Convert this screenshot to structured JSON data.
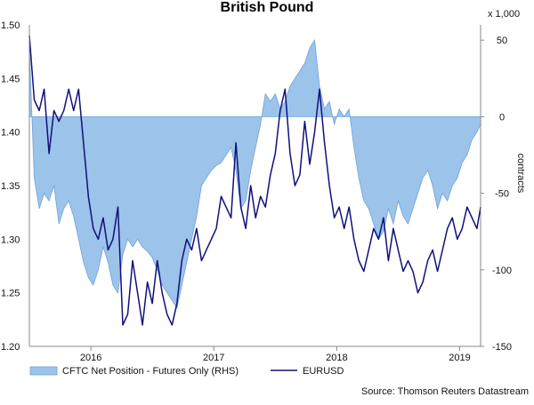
{
  "chart_data": {
    "type": "area",
    "title": "British Pound",
    "right_axis_unit": "x 1,000",
    "right_axis_label": "contracts",
    "source": "Source: Thomson Reuters Datastream",
    "left_ylim": [
      1.2,
      1.5
    ],
    "left_ticks": [
      "1.20",
      "1.25",
      "1.30",
      "1.35",
      "1.40",
      "1.45",
      "1.50"
    ],
    "right_ylim": [
      -150,
      60
    ],
    "right_ticks": [
      "-150",
      "-100",
      "-50",
      "0",
      "50"
    ],
    "xlim": [
      2015.5,
      2019.17
    ],
    "x_ticks": [
      {
        "label": "2016",
        "x": 2016.0
      },
      {
        "label": "2017",
        "x": 2017.0
      },
      {
        "label": "2018",
        "x": 2018.0
      },
      {
        "label": "2019",
        "x": 2019.0
      }
    ],
    "legend_position": "bottom-left",
    "colors": {
      "area_fill": "#9cc3ea",
      "area_stroke": "#6fa3d8",
      "line": "#10107a"
    },
    "series": [
      {
        "name": "CFTC Net Position - Futures Only (RHS)",
        "axis": "right",
        "x": [
          2015.5,
          2015.54,
          2015.58,
          2015.62,
          2015.66,
          2015.7,
          2015.74,
          2015.78,
          2015.82,
          2015.86,
          2015.9,
          2015.94,
          2015.98,
          2016.02,
          2016.06,
          2016.1,
          2016.14,
          2016.18,
          2016.22,
          2016.26,
          2016.3,
          2016.34,
          2016.38,
          2016.42,
          2016.46,
          2016.5,
          2016.54,
          2016.58,
          2016.62,
          2016.66,
          2016.7,
          2016.74,
          2016.78,
          2016.82,
          2016.86,
          2016.9,
          2016.94,
          2016.98,
          2017.02,
          2017.06,
          2017.1,
          2017.14,
          2017.18,
          2017.22,
          2017.26,
          2017.3,
          2017.34,
          2017.38,
          2017.42,
          2017.46,
          2017.5,
          2017.54,
          2017.58,
          2017.62,
          2017.66,
          2017.7,
          2017.74,
          2017.78,
          2017.82,
          2017.86,
          2017.9,
          2017.94,
          2017.98,
          2018.02,
          2018.06,
          2018.1,
          2018.14,
          2018.18,
          2018.22,
          2018.26,
          2018.3,
          2018.34,
          2018.38,
          2018.42,
          2018.46,
          2018.5,
          2018.54,
          2018.58,
          2018.62,
          2018.66,
          2018.7,
          2018.74,
          2018.78,
          2018.82,
          2018.86,
          2018.9,
          2018.94,
          2018.98,
          2019.02,
          2019.06,
          2019.1,
          2019.14,
          2019.17
        ],
        "values": [
          45,
          -40,
          -60,
          -50,
          -55,
          -45,
          -70,
          -60,
          -55,
          -65,
          -80,
          -95,
          -105,
          -110,
          -100,
          -85,
          -95,
          -110,
          -115,
          -90,
          -80,
          -85,
          -80,
          -85,
          -88,
          -92,
          -100,
          -110,
          -115,
          -120,
          -125,
          -110,
          -95,
          -80,
          -65,
          -45,
          -40,
          -35,
          -32,
          -30,
          -25,
          -20,
          -35,
          -60,
          -55,
          -35,
          -20,
          -5,
          15,
          10,
          15,
          5,
          10,
          20,
          25,
          30,
          35,
          45,
          50,
          20,
          5,
          10,
          -5,
          5,
          0,
          5,
          -20,
          -40,
          -55,
          -60,
          -70,
          -80,
          -75,
          -60,
          -70,
          -55,
          -65,
          -70,
          -60,
          -50,
          -40,
          -35,
          -45,
          -60,
          -50,
          -55,
          -45,
          -40,
          -30,
          -25,
          -15,
          -10,
          -5
        ]
      },
      {
        "name": "EURUSD",
        "axis": "left",
        "x": [
          2015.5,
          2015.54,
          2015.58,
          2015.62,
          2015.66,
          2015.7,
          2015.74,
          2015.78,
          2015.82,
          2015.86,
          2015.9,
          2015.94,
          2015.98,
          2016.02,
          2016.06,
          2016.1,
          2016.14,
          2016.18,
          2016.22,
          2016.26,
          2016.3,
          2016.34,
          2016.38,
          2016.42,
          2016.46,
          2016.5,
          2016.54,
          2016.58,
          2016.62,
          2016.66,
          2016.7,
          2016.74,
          2016.78,
          2016.82,
          2016.86,
          2016.9,
          2016.94,
          2016.98,
          2017.02,
          2017.06,
          2017.1,
          2017.14,
          2017.18,
          2017.22,
          2017.26,
          2017.3,
          2017.34,
          2017.38,
          2017.42,
          2017.46,
          2017.5,
          2017.54,
          2017.58,
          2017.62,
          2017.66,
          2017.7,
          2017.74,
          2017.78,
          2017.82,
          2017.86,
          2017.9,
          2017.94,
          2017.98,
          2018.02,
          2018.06,
          2018.1,
          2018.14,
          2018.18,
          2018.22,
          2018.26,
          2018.3,
          2018.34,
          2018.38,
          2018.42,
          2018.46,
          2018.5,
          2018.54,
          2018.58,
          2018.62,
          2018.66,
          2018.7,
          2018.74,
          2018.78,
          2018.82,
          2018.86,
          2018.9,
          2018.94,
          2018.98,
          2019.02,
          2019.06,
          2019.1,
          2019.14,
          2019.17
        ],
        "values": [
          1.49,
          1.43,
          1.42,
          1.44,
          1.38,
          1.42,
          1.41,
          1.42,
          1.44,
          1.42,
          1.44,
          1.39,
          1.34,
          1.31,
          1.3,
          1.32,
          1.29,
          1.3,
          1.33,
          1.22,
          1.23,
          1.28,
          1.25,
          1.22,
          1.26,
          1.24,
          1.28,
          1.25,
          1.23,
          1.22,
          1.24,
          1.28,
          1.3,
          1.29,
          1.31,
          1.28,
          1.29,
          1.3,
          1.31,
          1.34,
          1.33,
          1.32,
          1.39,
          1.33,
          1.31,
          1.35,
          1.32,
          1.34,
          1.33,
          1.36,
          1.38,
          1.42,
          1.44,
          1.38,
          1.35,
          1.36,
          1.41,
          1.37,
          1.4,
          1.44,
          1.39,
          1.35,
          1.32,
          1.33,
          1.31,
          1.33,
          1.3,
          1.28,
          1.27,
          1.29,
          1.31,
          1.3,
          1.32,
          1.28,
          1.31,
          1.29,
          1.27,
          1.28,
          1.27,
          1.25,
          1.26,
          1.28,
          1.29,
          1.27,
          1.29,
          1.31,
          1.32,
          1.3,
          1.31,
          1.33,
          1.32,
          1.31,
          1.33
        ]
      }
    ]
  }
}
